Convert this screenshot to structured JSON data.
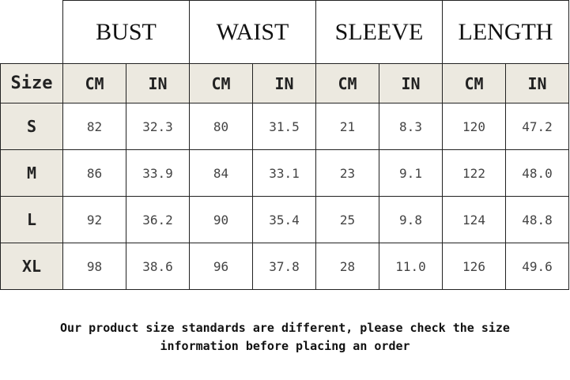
{
  "groups": [
    "BUST",
    "WAIST",
    "SLEEVE",
    "LENGTH"
  ],
  "size_header": "Size",
  "units": [
    "CM",
    "IN",
    "CM",
    "IN",
    "CM",
    "IN",
    "CM",
    "IN"
  ],
  "rows": [
    {
      "size": "S",
      "values": [
        "82",
        "32.3",
        "80",
        "31.5",
        "21",
        "8.3",
        "120",
        "47.2"
      ]
    },
    {
      "size": "M",
      "values": [
        "86",
        "33.9",
        "84",
        "33.1",
        "23",
        "9.1",
        "122",
        "48.0"
      ]
    },
    {
      "size": "L",
      "values": [
        "92",
        "36.2",
        "90",
        "35.4",
        "25",
        "9.8",
        "124",
        "48.8"
      ]
    },
    {
      "size": "XL",
      "values": [
        "98",
        "38.6",
        "96",
        "37.8",
        "28",
        "11.0",
        "126",
        "49.6"
      ]
    }
  ],
  "note": {
    "line1": "Our product size standards are different, please check the size",
    "line2": "information before placing an order"
  },
  "colors": {
    "header_bg": "#ece9e0",
    "border": "#222222"
  }
}
